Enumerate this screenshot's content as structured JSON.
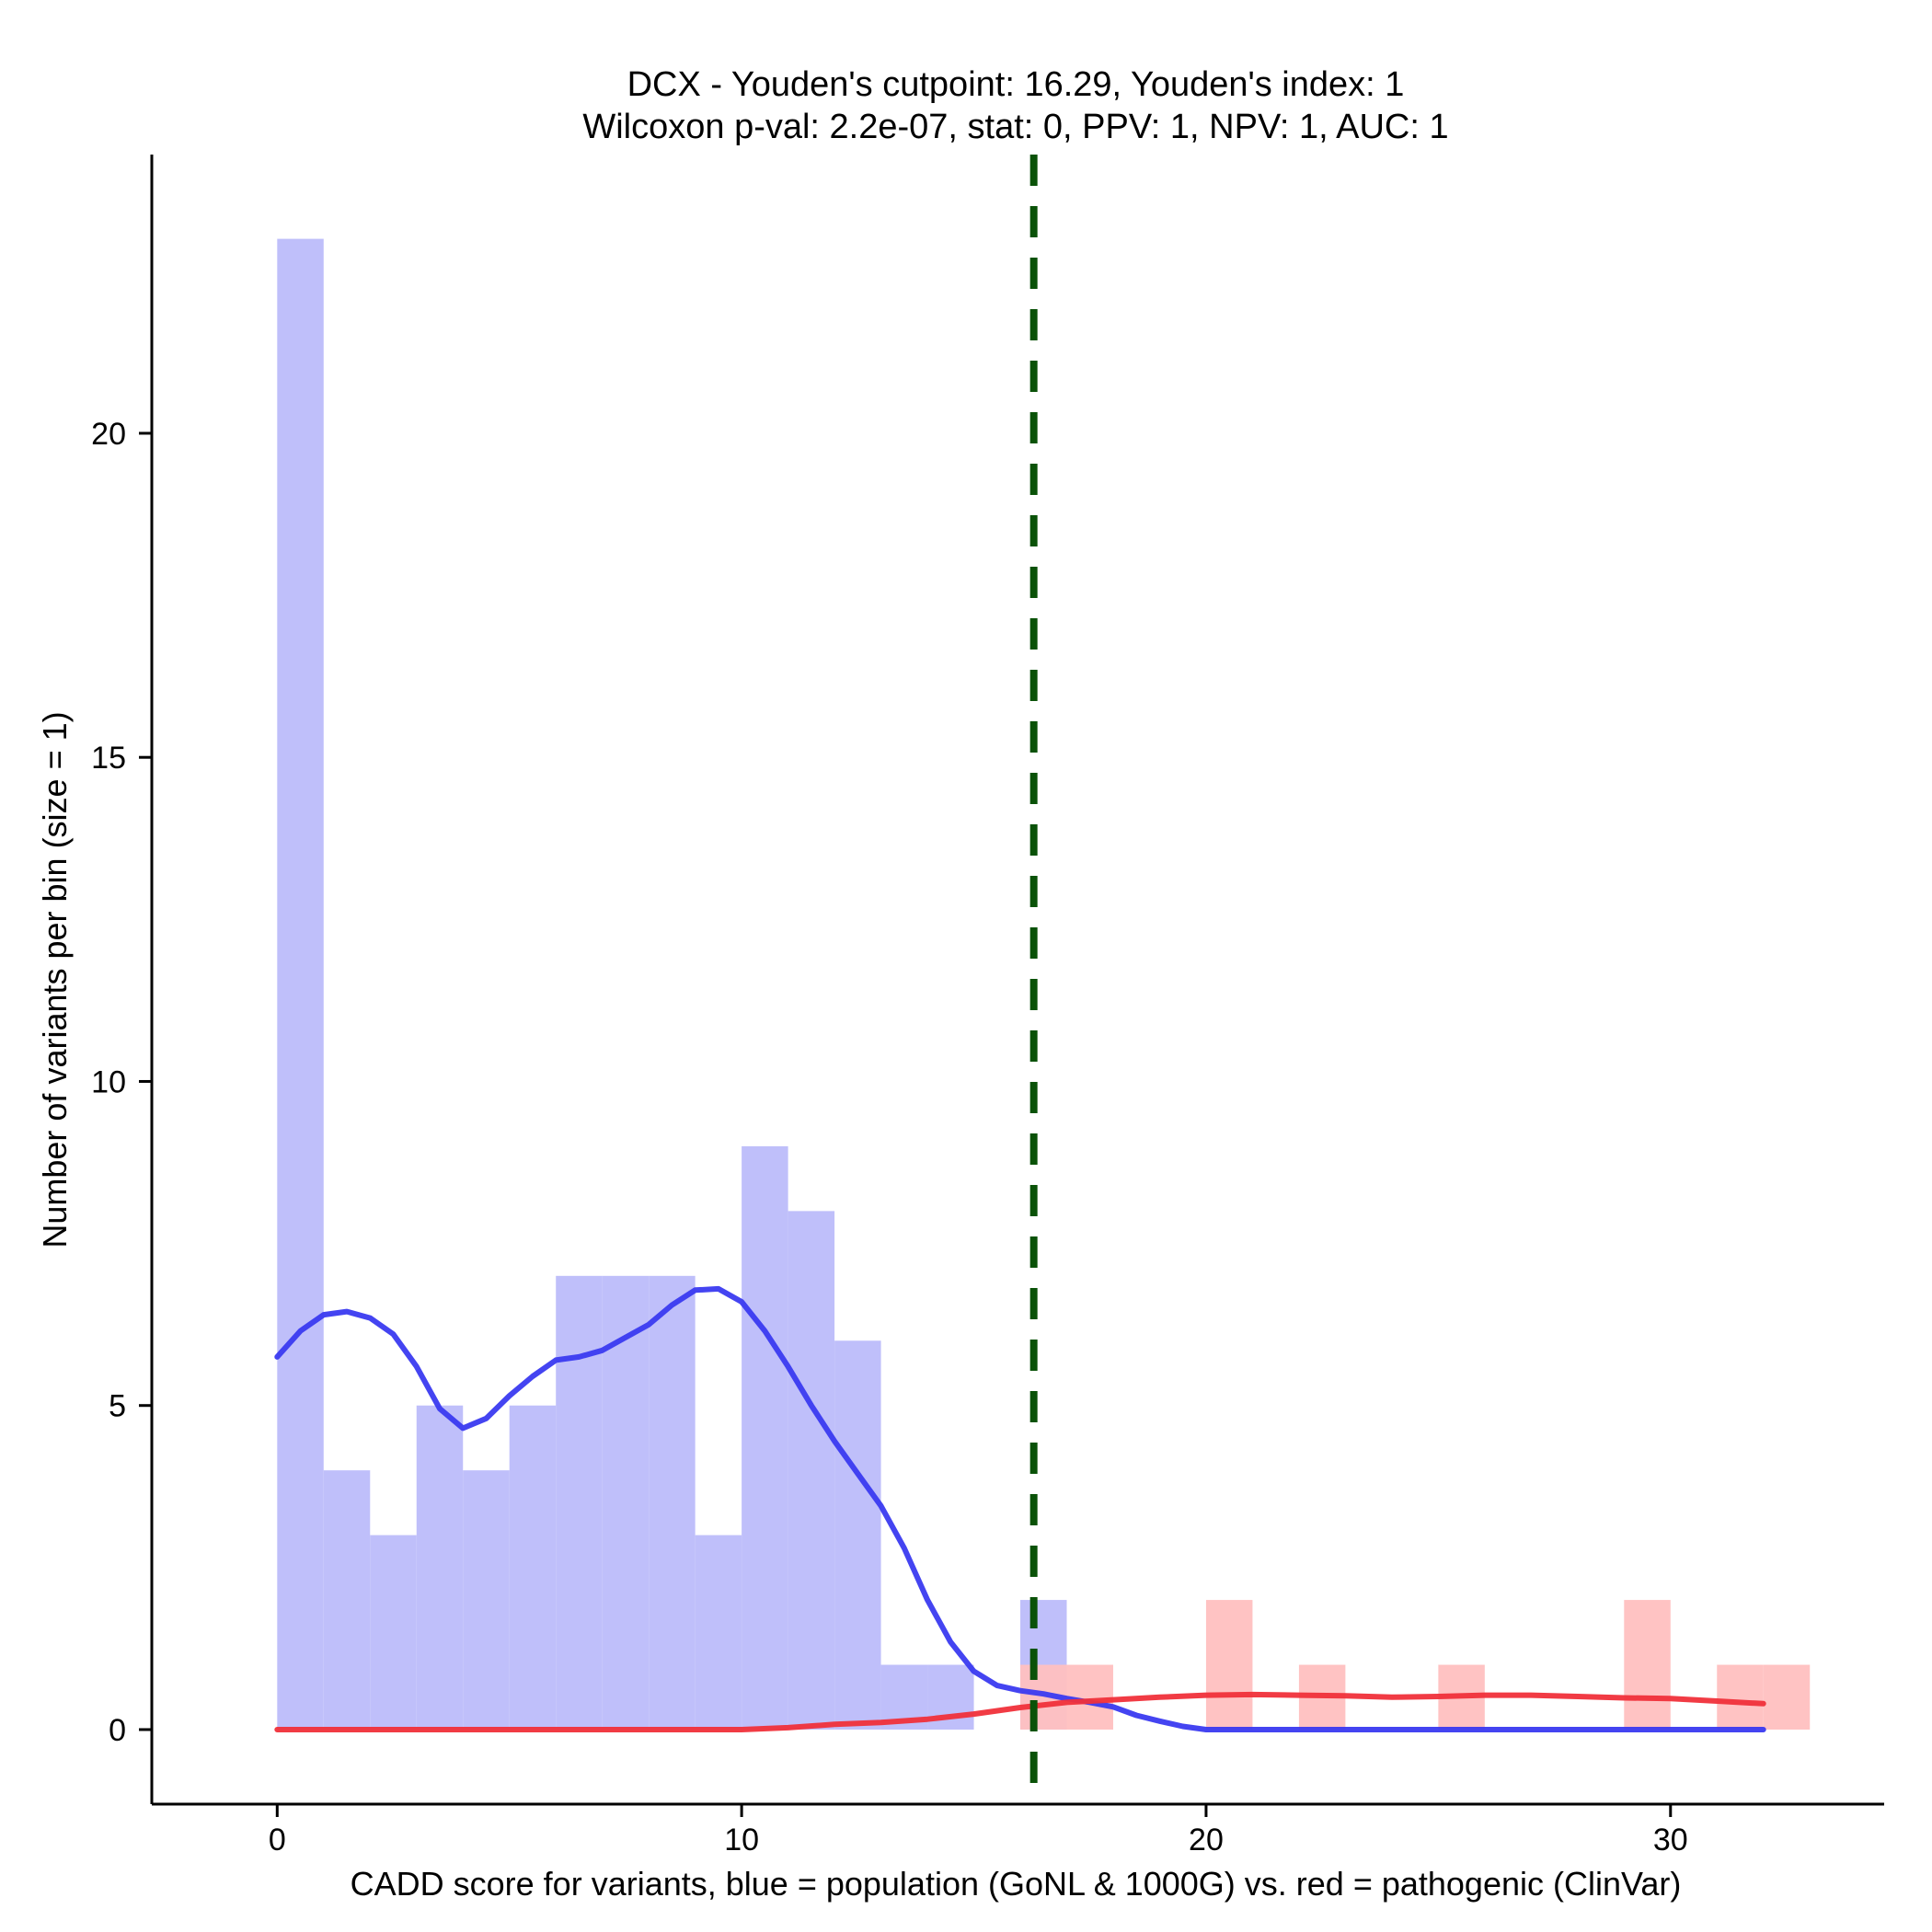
{
  "chart_data": {
    "type": "histogram",
    "title_line1": "DCX - Youden's cutpoint: 16.29, Youden's index: 1",
    "title_line2": "Wilcoxon p-val: 2.2e-07, stat: 0, PPV: 1, NPV: 1, AUC: 1",
    "xlabel": "CADD score for variants, blue = population (GoNL & 1000G) vs. red = pathogenic (ClinVar)",
    "ylabel": "Number of variants per bin (size = 1)",
    "xlim": [
      -2.7,
      34.6
    ],
    "ylim": [
      -1.15,
      24.3
    ],
    "x_ticks": [
      0,
      10,
      20,
      30
    ],
    "y_ticks": [
      0,
      5,
      10,
      15,
      20
    ],
    "bin_width": 1,
    "cutpoint": 16.29,
    "colors": {
      "population_bar": "#bcbcfa",
      "pathogenic_bar": "#ffc0c0",
      "population_line": "#3a3af0",
      "pathogenic_line": "#f0303a",
      "cutpoint_line": "#0a5208"
    },
    "series": [
      {
        "name": "population (GoNL & 1000G)",
        "bins": [
          {
            "x0": 0,
            "count": 23
          },
          {
            "x0": 1,
            "count": 4
          },
          {
            "x0": 2,
            "count": 3
          },
          {
            "x0": 3,
            "count": 5
          },
          {
            "x0": 4,
            "count": 4
          },
          {
            "x0": 5,
            "count": 5
          },
          {
            "x0": 6,
            "count": 7
          },
          {
            "x0": 7,
            "count": 7
          },
          {
            "x0": 8,
            "count": 7
          },
          {
            "x0": 9,
            "count": 3
          },
          {
            "x0": 10,
            "count": 9
          },
          {
            "x0": 11,
            "count": 8
          },
          {
            "x0": 12,
            "count": 6
          },
          {
            "x0": 13,
            "count": 1
          },
          {
            "x0": 14,
            "count": 1
          },
          {
            "x0": 16,
            "count": 2
          }
        ],
        "density_curve": [
          [
            0,
            5.75
          ],
          [
            0.5,
            6.15
          ],
          [
            1,
            6.4
          ],
          [
            1.5,
            6.45
          ],
          [
            2,
            6.35
          ],
          [
            2.5,
            6.1
          ],
          [
            3,
            5.6
          ],
          [
            3.5,
            4.95
          ],
          [
            4,
            4.65
          ],
          [
            4.5,
            4.8
          ],
          [
            5,
            5.15
          ],
          [
            5.5,
            5.45
          ],
          [
            6,
            5.7
          ],
          [
            6.5,
            5.75
          ],
          [
            7,
            5.85
          ],
          [
            7.5,
            6.05
          ],
          [
            8,
            6.25
          ],
          [
            8.5,
            6.55
          ],
          [
            9,
            6.78
          ],
          [
            9.5,
            6.8
          ],
          [
            10,
            6.6
          ],
          [
            10.5,
            6.15
          ],
          [
            11,
            5.6
          ],
          [
            11.5,
            5.0
          ],
          [
            12,
            4.45
          ],
          [
            12.5,
            3.95
          ],
          [
            13,
            3.45
          ],
          [
            13.5,
            2.8
          ],
          [
            14,
            2.0
          ],
          [
            14.5,
            1.35
          ],
          [
            15,
            0.9
          ],
          [
            15.5,
            0.68
          ],
          [
            16,
            0.6
          ],
          [
            16.5,
            0.55
          ],
          [
            17,
            0.48
          ],
          [
            17.5,
            0.42
          ],
          [
            18,
            0.35
          ],
          [
            18.5,
            0.22
          ],
          [
            19,
            0.13
          ],
          [
            19.5,
            0.05
          ],
          [
            20,
            0.0
          ],
          [
            22,
            0.0
          ],
          [
            25,
            0.0
          ],
          [
            28,
            0.0
          ],
          [
            30,
            0.0
          ],
          [
            32,
            0.0
          ]
        ]
      },
      {
        "name": "pathogenic (ClinVar)",
        "bins": [
          {
            "x0": 16,
            "count": 1
          },
          {
            "x0": 17,
            "count": 1
          },
          {
            "x0": 20,
            "count": 2
          },
          {
            "x0": 22,
            "count": 1
          },
          {
            "x0": 25,
            "count": 1
          },
          {
            "x0": 29,
            "count": 2
          },
          {
            "x0": 31,
            "count": 1
          },
          {
            "x0": 32,
            "count": 1
          }
        ],
        "density_curve": [
          [
            0,
            0.0
          ],
          [
            5,
            0.0
          ],
          [
            10,
            0.0
          ],
          [
            11,
            0.03
          ],
          [
            12,
            0.08
          ],
          [
            13,
            0.11
          ],
          [
            14,
            0.16
          ],
          [
            15,
            0.24
          ],
          [
            16,
            0.34
          ],
          [
            17,
            0.42
          ],
          [
            18,
            0.46
          ],
          [
            19,
            0.5
          ],
          [
            20,
            0.53
          ],
          [
            21,
            0.54
          ],
          [
            22,
            0.53
          ],
          [
            23,
            0.52
          ],
          [
            24,
            0.5
          ],
          [
            25,
            0.51
          ],
          [
            26,
            0.53
          ],
          [
            27,
            0.53
          ],
          [
            28,
            0.51
          ],
          [
            29,
            0.49
          ],
          [
            30,
            0.48
          ],
          [
            31,
            0.44
          ],
          [
            32,
            0.4
          ]
        ]
      }
    ]
  }
}
